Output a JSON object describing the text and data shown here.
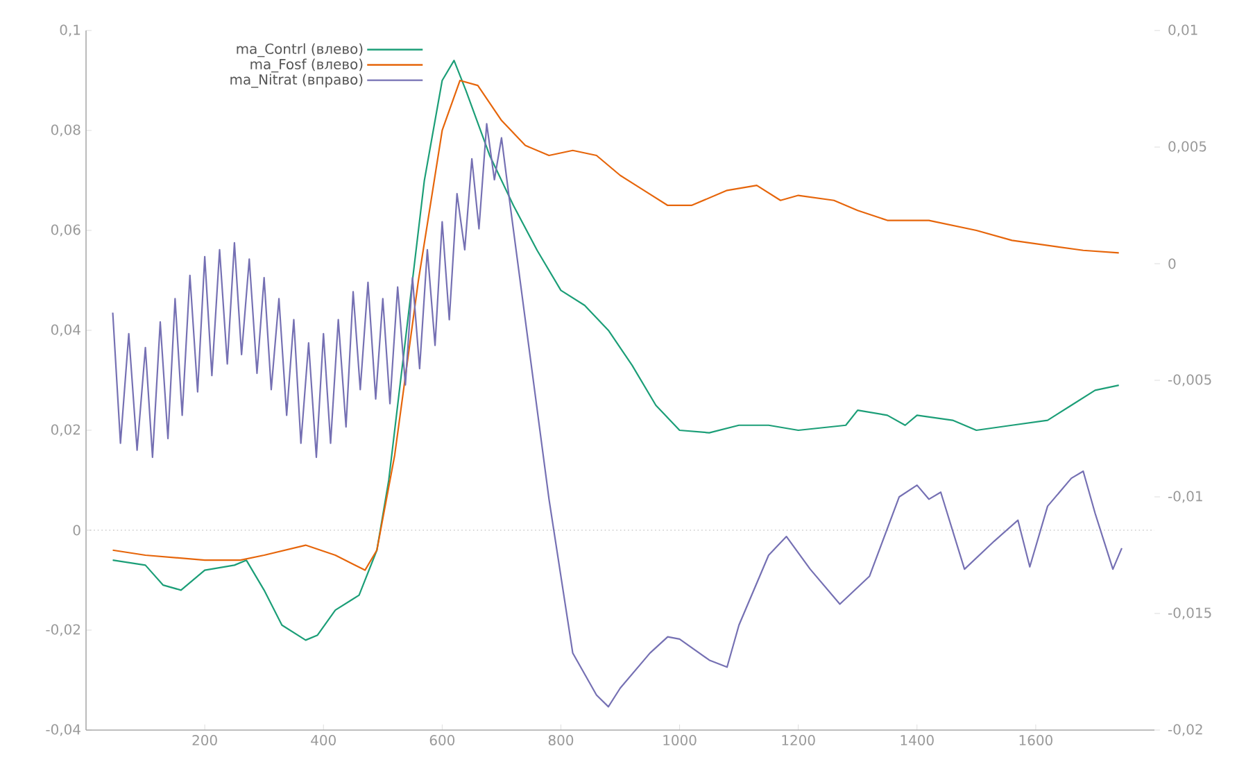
{
  "chart_data": {
    "type": "line",
    "xlim": [
      0,
      1800
    ],
    "xticks": [
      200,
      400,
      600,
      800,
      1000,
      1200,
      1400,
      1600
    ],
    "ylim": [
      -0.04,
      0.1
    ],
    "yticks": [
      {
        "value": -0.04,
        "label": "-0,04"
      },
      {
        "value": -0.02,
        "label": "-0,02"
      },
      {
        "value": 0,
        "label": "0"
      },
      {
        "value": 0.02,
        "label": "0,02"
      },
      {
        "value": 0.04,
        "label": "0,04"
      },
      {
        "value": 0.06,
        "label": "0,06"
      },
      {
        "value": 0.08,
        "label": "0,08"
      },
      {
        "value": 0.1,
        "label": "0,1"
      }
    ],
    "y2lim": [
      -0.02,
      0.01
    ],
    "y2ticks": [
      {
        "value": -0.02,
        "label": "-0,02"
      },
      {
        "value": -0.015,
        "label": "-0,015"
      },
      {
        "value": -0.01,
        "label": "-0,01"
      },
      {
        "value": -0.005,
        "label": "-0,005"
      },
      {
        "value": 0,
        "label": "0"
      },
      {
        "value": 0.005,
        "label": "0,005"
      },
      {
        "value": 0.01,
        "label": "0,01"
      }
    ],
    "legend": "top left",
    "line_style": "solid",
    "ref_lines": [
      {
        "axis": "y",
        "value": 0,
        "color": "#cccccc",
        "line_style": "dotted"
      }
    ],
    "series": [
      {
        "name": "ma_Contrl (влево)",
        "color": "#1b9e77",
        "x": [
          45,
          100,
          130,
          160,
          200,
          250,
          270,
          300,
          330,
          370,
          390,
          420,
          460,
          490,
          510,
          540,
          570,
          600,
          620,
          640,
          680,
          720,
          760,
          800,
          840,
          880,
          920,
          960,
          1000,
          1050,
          1100,
          1150,
          1200,
          1280,
          1300,
          1350,
          1380,
          1400,
          1460,
          1500,
          1560,
          1620,
          1660,
          1700,
          1740
        ],
        "values": [
          -0.006,
          -0.007,
          -0.011,
          -0.012,
          -0.008,
          -0.007,
          -0.006,
          -0.012,
          -0.019,
          -0.022,
          -0.021,
          -0.016,
          -0.013,
          -0.004,
          0.01,
          0.04,
          0.07,
          0.09,
          0.094,
          0.088,
          0.075,
          0.065,
          0.056,
          0.048,
          0.045,
          0.04,
          0.033,
          0.025,
          0.02,
          0.0195,
          0.021,
          0.021,
          0.02,
          0.021,
          0.024,
          0.023,
          0.021,
          0.023,
          0.022,
          0.02,
          0.021,
          0.022,
          0.025,
          0.028,
          0.029
        ]
      },
      {
        "name": "ma_Fosf (влево)",
        "color": "#e6650a",
        "x": [
          45,
          100,
          200,
          260,
          300,
          370,
          420,
          470,
          490,
          520,
          560,
          600,
          630,
          660,
          700,
          740,
          780,
          820,
          860,
          900,
          940,
          980,
          1020,
          1080,
          1130,
          1170,
          1200,
          1260,
          1300,
          1350,
          1420,
          1500,
          1560,
          1620,
          1680,
          1740
        ],
        "values": [
          -0.004,
          -0.005,
          -0.006,
          -0.006,
          -0.005,
          -0.003,
          -0.005,
          -0.008,
          -0.004,
          0.015,
          0.05,
          0.08,
          0.09,
          0.089,
          0.082,
          0.077,
          0.075,
          0.076,
          0.075,
          0.071,
          0.068,
          0.065,
          0.065,
          0.068,
          0.069,
          0.066,
          0.067,
          0.066,
          0.064,
          0.062,
          0.062,
          0.06,
          0.058,
          0.057,
          0.056,
          0.0555
        ]
      },
      {
        "name": "ma_Nitrat (вправо)",
        "color": "#7570b3",
        "axis": "y2",
        "x": [
          45,
          58,
          72,
          86,
          100,
          112,
          125,
          138,
          150,
          162,
          175,
          188,
          200,
          212,
          225,
          238,
          250,
          262,
          275,
          288,
          300,
          312,
          325,
          338,
          350,
          362,
          375,
          388,
          400,
          412,
          425,
          438,
          450,
          462,
          475,
          488,
          500,
          512,
          525,
          538,
          550,
          562,
          575,
          588,
          600,
          612,
          625,
          638,
          650,
          662,
          675,
          688,
          700,
          712,
          740,
          780,
          820,
          860,
          880,
          900,
          950,
          980,
          1000,
          1050,
          1080,
          1100,
          1150,
          1180,
          1220,
          1270,
          1320,
          1370,
          1400,
          1420,
          1440,
          1480,
          1530,
          1570,
          1590,
          1620,
          1660,
          1680,
          1700,
          1730,
          1745
        ],
        "values": [
          -0.0021,
          -0.0077,
          -0.003,
          -0.008,
          -0.0036,
          -0.0083,
          -0.0025,
          -0.0075,
          -0.0015,
          -0.0065,
          -0.0005,
          -0.0055,
          0.0003,
          -0.0048,
          0.0006,
          -0.0043,
          0.0009,
          -0.0039,
          0.0002,
          -0.0047,
          -0.0006,
          -0.0054,
          -0.0015,
          -0.0065,
          -0.0024,
          -0.0077,
          -0.0034,
          -0.0083,
          -0.003,
          -0.0077,
          -0.0024,
          -0.007,
          -0.0012,
          -0.0054,
          -0.0008,
          -0.0058,
          -0.0015,
          -0.006,
          -0.001,
          -0.0052,
          -0.0006,
          -0.0045,
          0.0006,
          -0.0035,
          0.0018,
          -0.0024,
          0.003,
          0.0006,
          0.0045,
          0.0015,
          0.006,
          0.0036,
          0.0054,
          0.003,
          -0.0024,
          -0.0101,
          -0.0167,
          -0.0185,
          -0.019,
          -0.0182,
          -0.0167,
          -0.016,
          -0.0161,
          -0.017,
          -0.0173,
          -0.0155,
          -0.0125,
          -0.0117,
          -0.0131,
          -0.0146,
          -0.0134,
          -0.01,
          -0.0095,
          -0.0101,
          -0.0098,
          -0.0131,
          -0.0119,
          -0.011,
          -0.013,
          -0.0104,
          -0.0092,
          -0.0089,
          -0.0107,
          -0.0131,
          -0.0122
        ]
      }
    ]
  }
}
